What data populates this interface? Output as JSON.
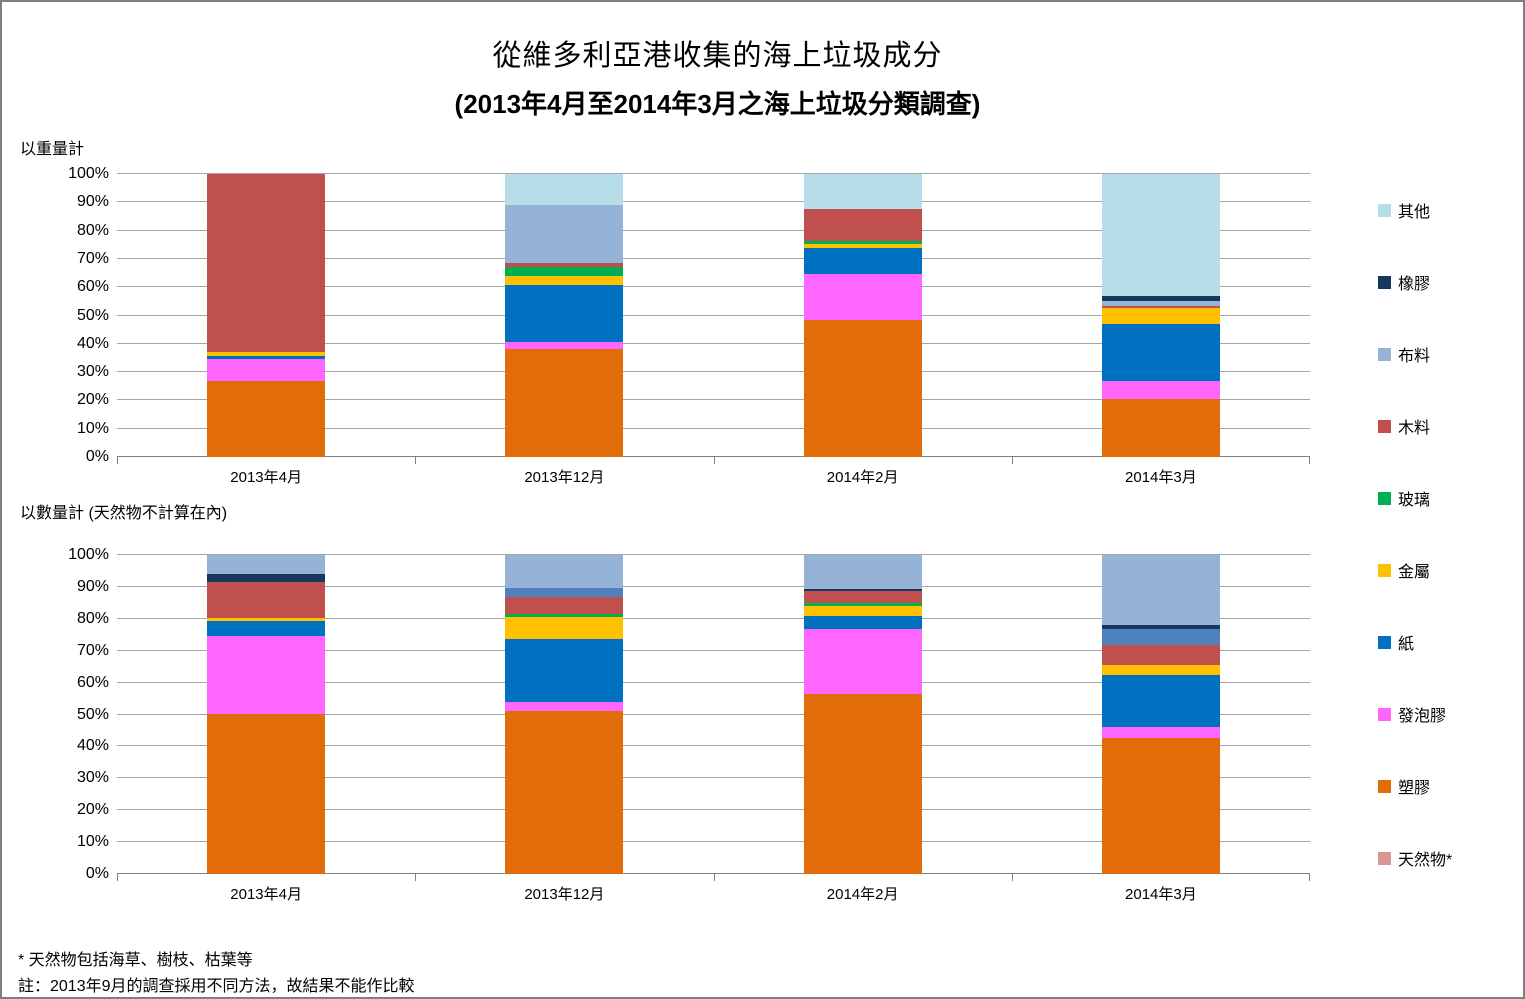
{
  "title": "從維多利亞港收集的海上垃圾成分",
  "subtitle": "(2013年4月至2014年3月之海上垃圾分類調查)",
  "footnotes": {
    "line1": "* 天然物包括海草、樹枝、枯葉等",
    "line2": "註：2013年9月的調查採用不同方法，故結果不能作比較"
  },
  "legend": {
    "position": "right",
    "items": [
      {
        "label": "其他",
        "color": "#B7DEE8"
      },
      {
        "label": "橡膠",
        "color": "#17375E"
      },
      {
        "label": "布料",
        "color": "#95B3D7"
      },
      {
        "label": "木料",
        "color": "#C0504D"
      },
      {
        "label": "玻璃",
        "color": "#00B050"
      },
      {
        "label": "金屬",
        "color": "#FFC000"
      },
      {
        "label": "紙",
        "color": "#0070C0"
      },
      {
        "label": "發泡膠",
        "color": "#FF66FF"
      },
      {
        "label": "塑膠",
        "color": "#E36C0A"
      },
      {
        "label": "天然物*",
        "color": "#D99694"
      }
    ]
  },
  "chart_data": [
    {
      "type": "bar",
      "stacked": true,
      "stack_order": "bottom-to-top",
      "section_label": "以重量計",
      "categories": [
        "2013年4月",
        "2013年12月",
        "2014年2月",
        "2014年3月"
      ],
      "ylim": [
        0,
        100
      ],
      "tick_step": 10,
      "tick_suffix": "%",
      "grid": true,
      "series": [
        {
          "name": "塑膠",
          "color": "#E36C0A",
          "values": [
            27.0,
            38.2,
            48.5,
            20.4
          ]
        },
        {
          "name": "發泡膠",
          "color": "#FF66FF",
          "values": [
            7.5,
            2.6,
            16.0,
            6.3
          ]
        },
        {
          "name": "紙",
          "color": "#0070C0",
          "values": [
            1.3,
            20.1,
            9.2,
            20.3
          ]
        },
        {
          "name": "金屬",
          "color": "#FFC000",
          "values": [
            1.2,
            3.0,
            1.7,
            5.7
          ]
        },
        {
          "name": "玻璃",
          "color": "#00B050",
          "values": [
            0,
            3.2,
            0.9,
            0
          ]
        },
        {
          "name": "木料",
          "color": "#C0504D",
          "values": [
            63.0,
            1.5,
            11.5,
            0.8
          ]
        },
        {
          "name": "布料",
          "color": "#95B3D7",
          "values": [
            0,
            20.3,
            0,
            1.8
          ]
        },
        {
          "name": "橡膠",
          "color": "#17375E",
          "values": [
            0,
            0,
            0,
            1.7
          ]
        },
        {
          "name": "其他",
          "color": "#B7DEE8",
          "values": [
            0,
            11.1,
            12.2,
            43.0
          ]
        },
        {
          "name": "天然物*",
          "color": "#D99694",
          "values": [
            0,
            0,
            0,
            0
          ]
        }
      ]
    },
    {
      "type": "bar",
      "stacked": true,
      "stack_order": "bottom-to-top",
      "section_label": "以數量計 (天然物不計算在內)",
      "categories": [
        "2013年4月",
        "2013年12月",
        "2014年2月",
        "2014年3月"
      ],
      "ylim": [
        0,
        100
      ],
      "tick_step": 10,
      "tick_suffix": "%",
      "grid": true,
      "series": [
        {
          "name": "塑膠",
          "color": "#E36C0A",
          "values": [
            50.2,
            51.1,
            56.5,
            42.5
          ]
        },
        {
          "name": "發泡膠",
          "color": "#FF66FF",
          "values": [
            24.3,
            2.7,
            20.2,
            3.7
          ]
        },
        {
          "name": "紙",
          "color": "#0070C0",
          "values": [
            4.7,
            20.0,
            4.2,
            16.2
          ]
        },
        {
          "name": "金屬",
          "color": "#FFC000",
          "values": [
            1.1,
            6.7,
            3.0,
            3.2
          ]
        },
        {
          "name": "玻璃",
          "color": "#00B050",
          "values": [
            0,
            1.0,
            1.2,
            0
          ]
        },
        {
          "name": "木料",
          "color": "#C0504D",
          "values": [
            11.3,
            5.3,
            3.5,
            6.3
          ]
        },
        {
          "name": "布料",
          "color": "#4F81BD",
          "values": [
            0,
            3.0,
            0,
            5.0
          ]
        },
        {
          "name": "橡膠",
          "color": "#17375E",
          "values": [
            2.3,
            0,
            0.9,
            1.3
          ]
        },
        {
          "name": "其他",
          "color": "#95B3D7",
          "values": [
            6.1,
            10.2,
            10.5,
            21.8
          ]
        },
        {
          "name": "天然物*",
          "color": "#D99694",
          "values": [
            0,
            0,
            0,
            0
          ]
        }
      ]
    }
  ]
}
